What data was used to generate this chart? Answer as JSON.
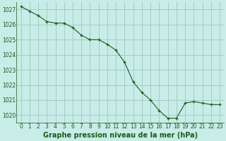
{
  "x": [
    0,
    1,
    2,
    3,
    4,
    5,
    6,
    7,
    8,
    9,
    10,
    11,
    12,
    13,
    14,
    15,
    16,
    17,
    18,
    19,
    20,
    21,
    22,
    23
  ],
  "y": [
    1027.2,
    1026.9,
    1026.6,
    1026.2,
    1026.1,
    1026.1,
    1025.8,
    1025.3,
    1025.0,
    1025.0,
    1024.7,
    1024.3,
    1023.5,
    1022.2,
    1021.5,
    1021.0,
    1020.3,
    1019.8,
    1019.8,
    1020.8,
    1020.9,
    1020.8,
    1020.7,
    1020.7
  ],
  "line_color": "#1a5c1a",
  "marker": "+",
  "bg_color": "#c8ece8",
  "grid_color": "#a0c8c0",
  "xlabel": "Graphe pression niveau de la mer (hPa)",
  "xlabel_color": "#1a5c1a",
  "tick_color": "#1a5c1a",
  "ylim_min": 1019.5,
  "ylim_max": 1027.5,
  "ytick_vals": [
    1020,
    1021,
    1022,
    1023,
    1024,
    1025,
    1026,
    1027
  ],
  "ytick_step": 1,
  "xtick_labels": [
    "0",
    "1",
    "2",
    "3",
    "4",
    "5",
    "6",
    "7",
    "8",
    "9",
    "10",
    "11",
    "12",
    "13",
    "14",
    "15",
    "16",
    "17",
    "18",
    "19",
    "20",
    "21",
    "22",
    "23"
  ],
  "xlabel_fontsize": 7,
  "tick_fontsize": 5.5
}
